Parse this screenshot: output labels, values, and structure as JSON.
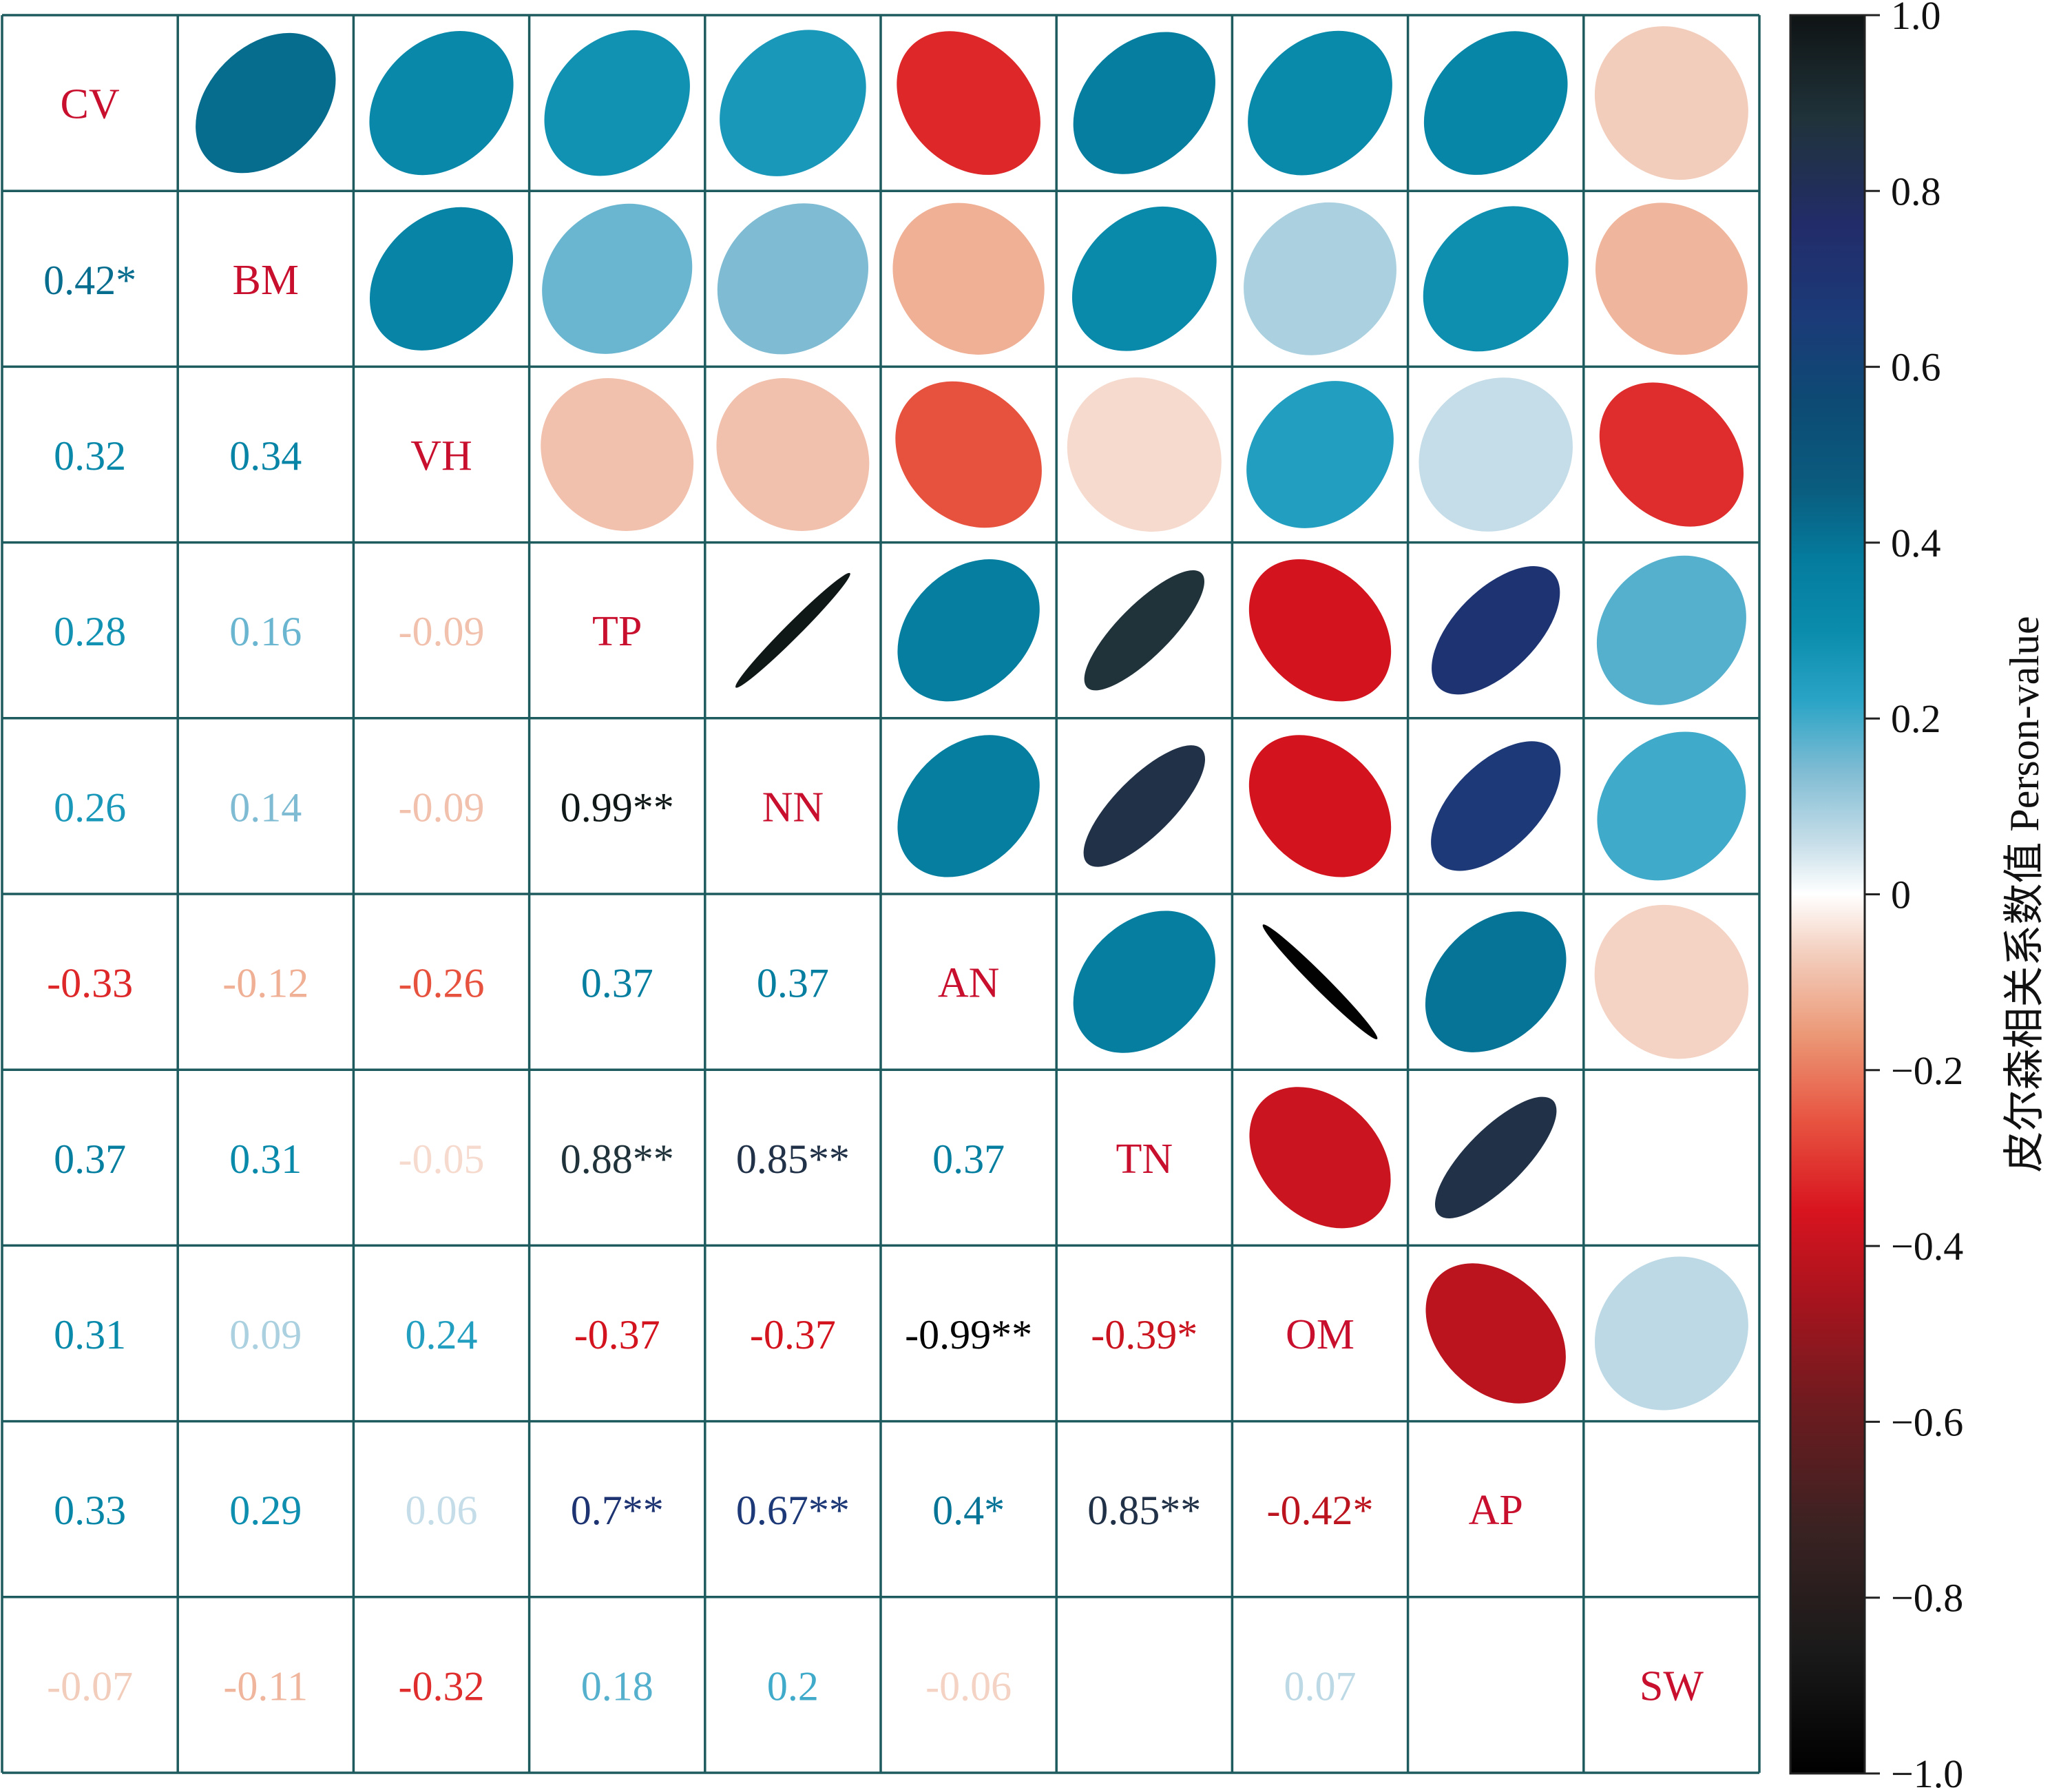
{
  "chart_data": {
    "type": "heatmap",
    "subtype": "correlation-matrix",
    "upper_triangle": "ellipse",
    "lower_triangle": "number",
    "variables": [
      "CV",
      "BM",
      "VH",
      "TP",
      "NN",
      "AN",
      "TN",
      "OM",
      "AP",
      "SW"
    ],
    "matrix": [
      [
        1,
        0.42,
        0.32,
        0.28,
        0.26,
        -0.33,
        0.37,
        0.31,
        0.33,
        -0.07
      ],
      [
        0.42,
        1,
        0.34,
        0.16,
        0.14,
        -0.12,
        0.31,
        0.09,
        0.29,
        -0.11
      ],
      [
        0.32,
        0.34,
        1,
        -0.09,
        -0.09,
        -0.26,
        -0.05,
        0.24,
        0.06,
        -0.32
      ],
      [
        0.28,
        0.16,
        -0.09,
        1,
        0.99,
        0.37,
        0.88,
        -0.37,
        0.7,
        0.18
      ],
      [
        0.26,
        0.14,
        -0.09,
        0.99,
        1,
        0.37,
        0.85,
        -0.37,
        0.67,
        0.2
      ],
      [
        -0.33,
        -0.12,
        -0.26,
        0.37,
        0.37,
        1,
        0.37,
        -0.99,
        0.4,
        -0.06
      ],
      [
        0.37,
        0.31,
        -0.05,
        0.88,
        0.85,
        0.37,
        1,
        -0.39,
        0.85,
        null
      ],
      [
        0.31,
        0.09,
        0.24,
        -0.37,
        -0.37,
        -0.99,
        -0.39,
        1,
        -0.42,
        0.07
      ],
      [
        0.33,
        0.29,
        0.06,
        0.7,
        0.67,
        0.4,
        0.85,
        -0.42,
        1,
        null
      ],
      [
        -0.07,
        -0.11,
        -0.32,
        0.18,
        0.2,
        -0.06,
        null,
        0.07,
        null,
        1
      ]
    ],
    "lower_labels": [
      [
        "",
        "",
        "",
        "",
        "",
        "",
        "",
        "",
        "",
        ""
      ],
      [
        "0.42*",
        "",
        "",
        "",
        "",
        "",
        "",
        "",
        "",
        ""
      ],
      [
        "0.32",
        "0.34",
        "",
        "",
        "",
        "",
        "",
        "",
        "",
        ""
      ],
      [
        "0.28",
        "0.16",
        "-0.09",
        "",
        "",
        "",
        "",
        "",
        "",
        ""
      ],
      [
        "0.26",
        "0.14",
        "-0.09",
        "0.99**",
        "",
        "",
        "",
        "",
        "",
        ""
      ],
      [
        "-0.33",
        "-0.12",
        "-0.26",
        "0.37",
        "0.37",
        "",
        "",
        "",
        "",
        ""
      ],
      [
        "0.37",
        "0.31",
        "-0.05",
        "0.88**",
        "0.85**",
        "0.37",
        "",
        "",
        "",
        ""
      ],
      [
        "0.31",
        "0.09",
        "0.24",
        "-0.37",
        "-0.37",
        "-0.99**",
        "-0.39*",
        "",
        "",
        ""
      ],
      [
        "0.33",
        "0.29",
        "0.06",
        "0.7**",
        "0.67**",
        "0.4*",
        "0.85**",
        "-0.42*",
        "",
        ""
      ],
      [
        "-0.07",
        "-0.11",
        "-0.32",
        "0.18",
        "0.2",
        "-0.06",
        "",
        "0.07",
        "",
        ""
      ]
    ],
    "colorbar": {
      "label": "皮尔森相关系数值 Person-value",
      "range": [
        -1.0,
        1.0
      ],
      "ticks": [
        "1.0",
        "0.8",
        "0.6",
        "0.4",
        "0.2",
        "0",
        "−0.2",
        "−0.4",
        "−0.6",
        "−0.8",
        "−1.0"
      ]
    },
    "colors": {
      "grid_line": "#1e5b5e",
      "diagonal_label": "#c8102e"
    }
  }
}
